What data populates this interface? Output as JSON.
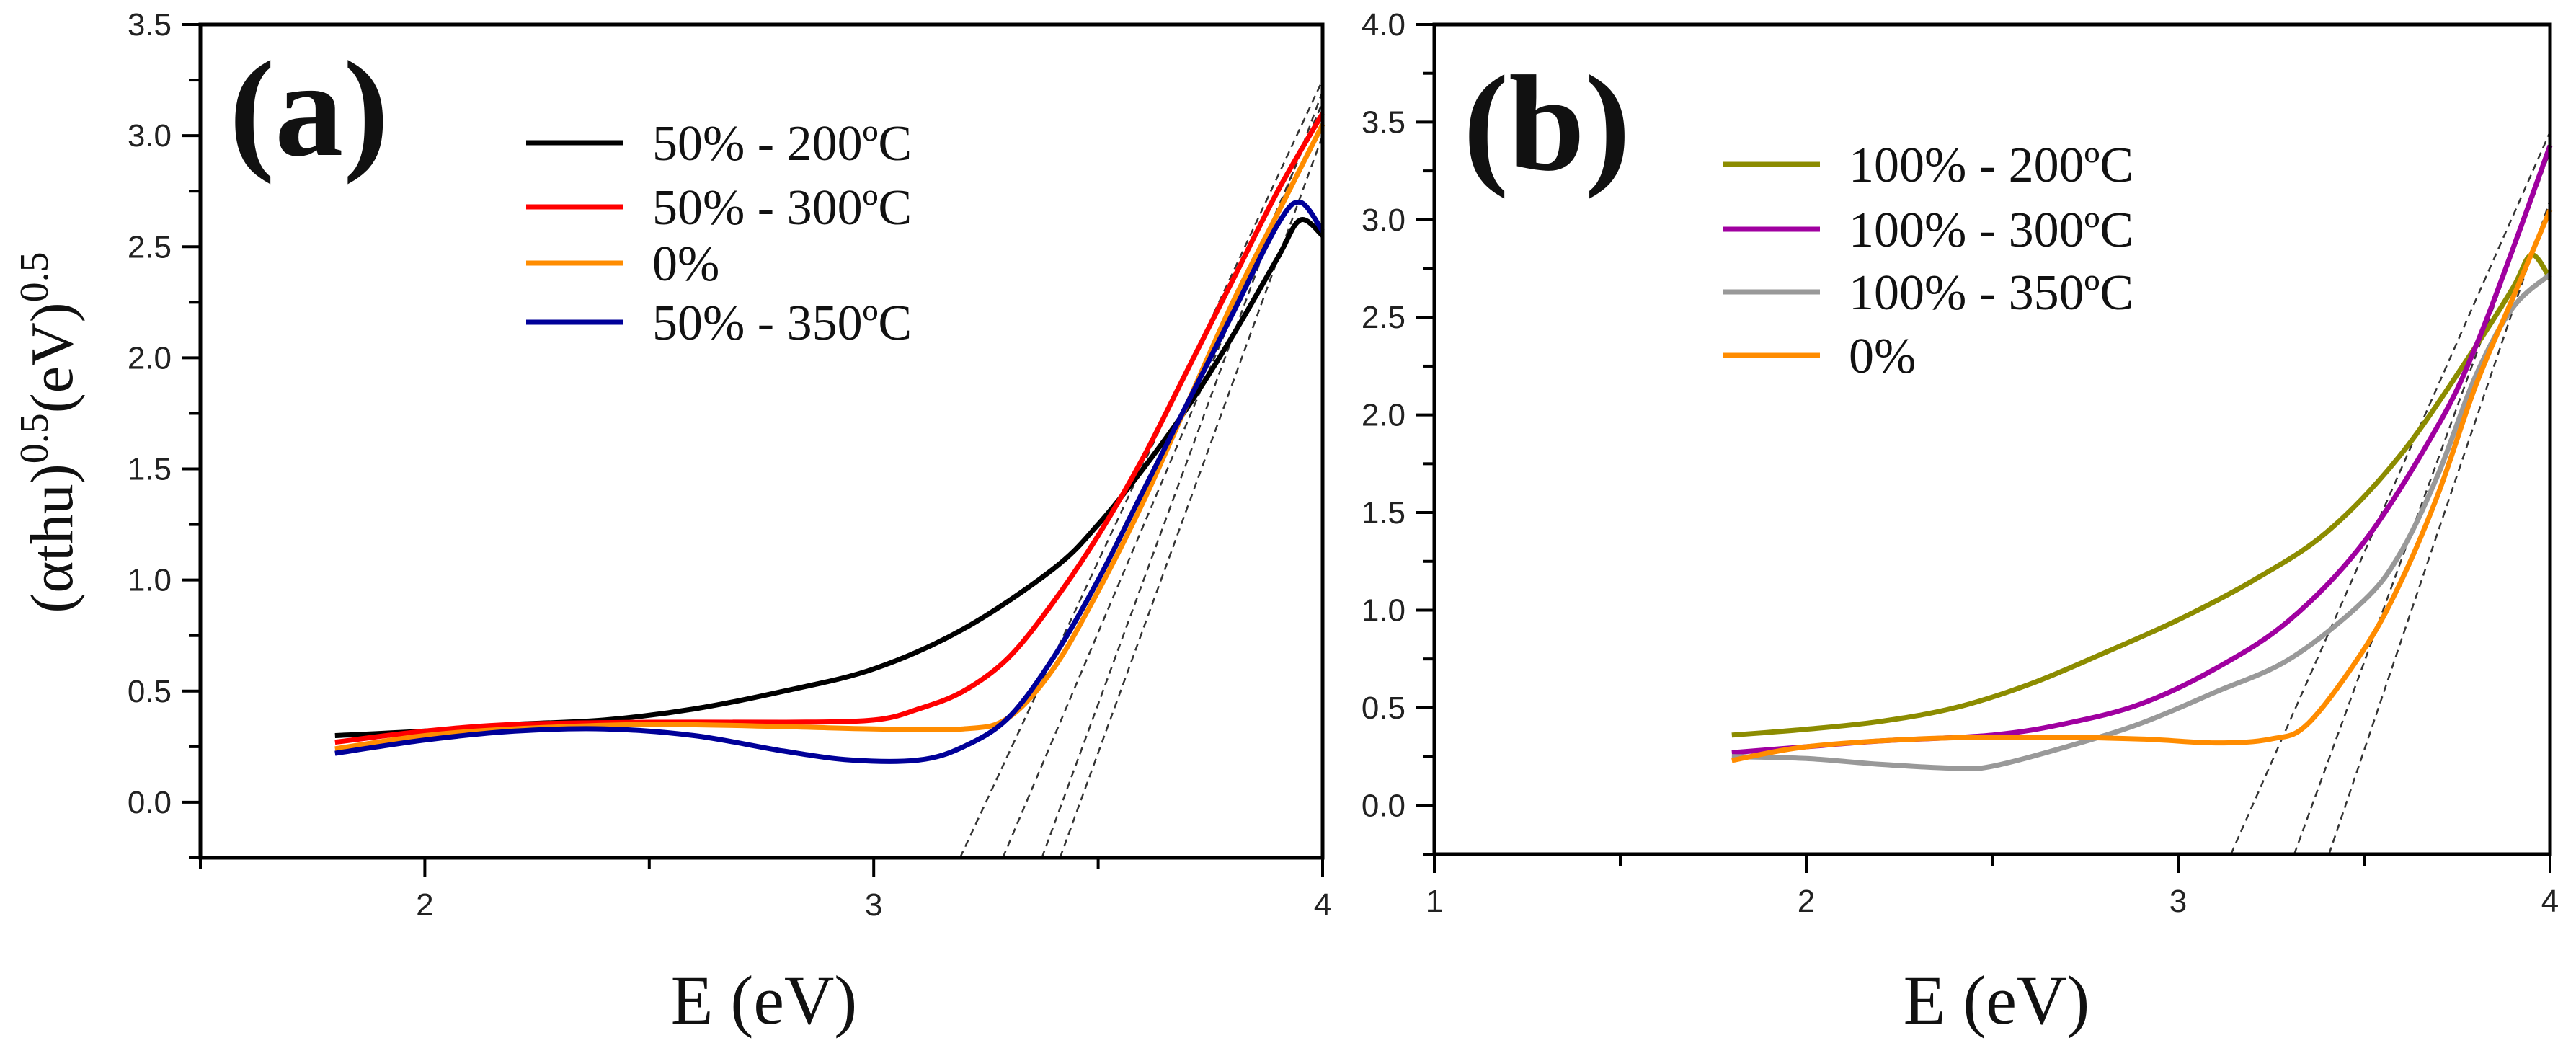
{
  "chart_data": [
    {
      "type": "line",
      "panel_label": "(a)",
      "xlabel": "E (eV)",
      "ylabel_parts": [
        "(αthu)",
        "0.5",
        "(eV)",
        "0.5"
      ],
      "xlim": [
        1.5,
        4
      ],
      "ylim": [
        -0.25,
        3.5
      ],
      "xticks": [
        2,
        3,
        4
      ],
      "xtick_labels": [
        "2",
        "3",
        "4"
      ],
      "yticks": [
        0.0,
        0.5,
        1.0,
        1.5,
        2.0,
        2.5,
        3.0,
        3.5
      ],
      "ytick_labels": [
        "0.0",
        "0.5",
        "1.0",
        "1.5",
        "2.0",
        "2.5",
        "3.0",
        "3.5"
      ],
      "grid": false,
      "legend_position": "top-center",
      "series": [
        {
          "name": "50% - 200ºC",
          "color": "#000000",
          "x": [
            1.8,
            2.0,
            2.2,
            2.4,
            2.6,
            2.8,
            3.0,
            3.2,
            3.4,
            3.5,
            3.6,
            3.7,
            3.8,
            3.9,
            3.95,
            4.0
          ],
          "y": [
            0.3,
            0.32,
            0.35,
            0.37,
            0.42,
            0.5,
            0.6,
            0.78,
            1.05,
            1.25,
            1.5,
            1.78,
            2.1,
            2.45,
            2.62,
            2.55
          ]
        },
        {
          "name": "50% - 300ºC",
          "color": "#ff0000",
          "x": [
            1.8,
            2.0,
            2.2,
            2.5,
            2.8,
            3.0,
            3.1,
            3.2,
            3.3,
            3.4,
            3.5,
            3.6,
            3.7,
            3.8,
            3.9,
            4.0
          ],
          "y": [
            0.27,
            0.32,
            0.35,
            0.36,
            0.36,
            0.37,
            0.42,
            0.5,
            0.65,
            0.9,
            1.2,
            1.55,
            1.95,
            2.35,
            2.75,
            3.1
          ]
        },
        {
          "name": "0%",
          "color": "#ff8c00",
          "x": [
            1.8,
            2.0,
            2.2,
            2.5,
            2.8,
            3.0,
            3.2,
            3.3,
            3.4,
            3.5,
            3.6,
            3.7,
            3.8,
            3.9,
            4.0
          ],
          "y": [
            0.24,
            0.3,
            0.33,
            0.35,
            0.34,
            0.33,
            0.33,
            0.38,
            0.6,
            0.95,
            1.35,
            1.8,
            2.25,
            2.65,
            3.05
          ]
        },
        {
          "name": "50% - 350ºC",
          "color": "#000099",
          "x": [
            1.8,
            2.0,
            2.2,
            2.4,
            2.6,
            2.8,
            2.95,
            3.1,
            3.2,
            3.3,
            3.4,
            3.5,
            3.6,
            3.7,
            3.8,
            3.9,
            3.95,
            4.0
          ],
          "y": [
            0.22,
            0.28,
            0.32,
            0.33,
            0.3,
            0.23,
            0.19,
            0.19,
            0.25,
            0.38,
            0.65,
            1.0,
            1.4,
            1.8,
            2.2,
            2.6,
            2.7,
            2.57
          ]
        }
      ],
      "tangent_lines": [
        {
          "x_intercept": 3.25,
          "y_at_4": 3.25
        },
        {
          "x_intercept": 3.34,
          "y_at_4": 3.15
        },
        {
          "x_intercept": 3.42,
          "y_at_4": 3.2
        },
        {
          "x_intercept": 3.46,
          "y_at_4": 3.0
        }
      ]
    },
    {
      "type": "line",
      "panel_label": "(b)",
      "xlabel": "E (eV)",
      "xlim": [
        1,
        4
      ],
      "ylim": [
        -0.25,
        4.0
      ],
      "xticks": [
        1,
        2,
        3,
        4
      ],
      "xtick_labels": [
        "1",
        "2",
        "3",
        "4"
      ],
      "yticks": [
        0.0,
        0.5,
        1.0,
        1.5,
        2.0,
        2.5,
        3.0,
        3.5,
        4.0
      ],
      "ytick_labels": [
        "0.0",
        "0.5",
        "1.0",
        "1.5",
        "2.0",
        "2.5",
        "3.0",
        "3.5",
        "4.0"
      ],
      "grid": false,
      "legend_position": "top-center",
      "series": [
        {
          "name": "100% - 200ºC",
          "color": "#8c8c00",
          "x": [
            1.8,
            2.0,
            2.2,
            2.4,
            2.6,
            2.8,
            3.0,
            3.2,
            3.4,
            3.6,
            3.8,
            3.9,
            3.95,
            4.0
          ],
          "y": [
            0.36,
            0.39,
            0.43,
            0.5,
            0.62,
            0.78,
            0.95,
            1.15,
            1.4,
            1.8,
            2.35,
            2.65,
            2.82,
            2.7
          ]
        },
        {
          "name": "100% - 300ºC",
          "color": "#a000a0",
          "x": [
            1.8,
            2.0,
            2.2,
            2.5,
            2.7,
            2.9,
            3.1,
            3.3,
            3.5,
            3.7,
            3.8,
            3.9,
            4.0
          ],
          "y": [
            0.27,
            0.3,
            0.33,
            0.36,
            0.42,
            0.52,
            0.7,
            0.95,
            1.35,
            1.95,
            2.35,
            2.85,
            3.38
          ]
        },
        {
          "name": "100% - 350ºC",
          "color": "#999999",
          "x": [
            1.8,
            2.0,
            2.2,
            2.4,
            2.5,
            2.7,
            2.9,
            3.1,
            3.3,
            3.5,
            3.6,
            3.7,
            3.8,
            3.9,
            4.0
          ],
          "y": [
            0.25,
            0.24,
            0.21,
            0.19,
            0.2,
            0.3,
            0.42,
            0.58,
            0.75,
            1.05,
            1.3,
            1.7,
            2.2,
            2.55,
            2.72
          ]
        },
        {
          "name": "0%",
          "color": "#ff8c00",
          "x": [
            1.8,
            2.0,
            2.3,
            2.6,
            2.9,
            3.1,
            3.25,
            3.35,
            3.5,
            3.6,
            3.7,
            3.8,
            3.9,
            4.0
          ],
          "y": [
            0.23,
            0.3,
            0.34,
            0.35,
            0.34,
            0.32,
            0.34,
            0.42,
            0.8,
            1.15,
            1.6,
            2.15,
            2.6,
            3.05
          ]
        }
      ],
      "tangent_lines": [
        {
          "x_intercept": 3.2,
          "y_at_4": 3.45
        },
        {
          "x_intercept": 3.36,
          "y_at_4": 3.35
        },
        {
          "x_intercept": 3.45,
          "y_at_4": 3.1
        }
      ]
    }
  ]
}
